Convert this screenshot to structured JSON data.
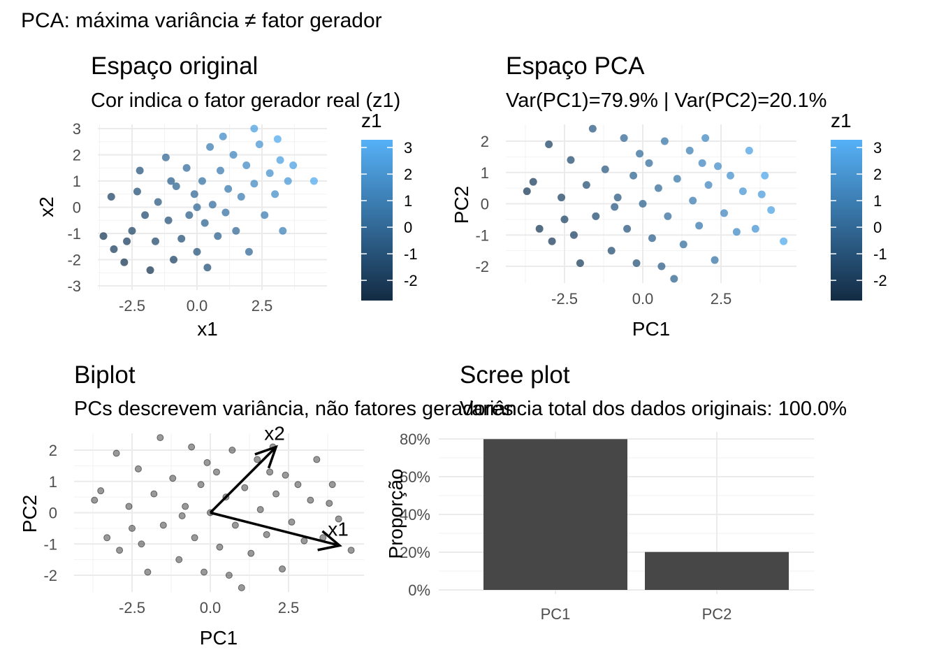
{
  "title": "PCA: máxima variância ≠ fator gerador",
  "chart_data": [
    {
      "type": "scatter",
      "title": "Espaço original",
      "subtitle": "Cor indica o fator gerador real (z1)",
      "xlabel": "x1",
      "ylabel": "x2",
      "xticks": [
        "-2.5",
        "0.0",
        "2.5"
      ],
      "yticks": [
        "-3",
        "-2",
        "-1",
        "0",
        "1",
        "2",
        "3"
      ],
      "legend": {
        "title": "z1",
        "ticks": [
          "3",
          "2",
          "1",
          "0",
          "-1",
          "-2"
        ],
        "low_color": "#132B43",
        "high_color": "#56B1F7",
        "placement": "right"
      },
      "grid": true,
      "points_fields": [
        "x1",
        "x2",
        "z1"
      ],
      "points": [
        [
          -3.6,
          -1.1,
          -2
        ],
        [
          -3.2,
          -1.6,
          -1.8
        ],
        [
          -3.3,
          0.4,
          -1.5
        ],
        [
          -2.8,
          -2.1,
          -2.1
        ],
        [
          -2.5,
          -0.9,
          -1.5
        ],
        [
          -2.3,
          0.6,
          -1
        ],
        [
          -2.2,
          1.4,
          -0.8
        ],
        [
          -1.8,
          -2.4,
          -2.2
        ],
        [
          -1.6,
          -1.3,
          -1.3
        ],
        [
          -1.5,
          0.2,
          -0.7
        ],
        [
          -1.2,
          1.9,
          0
        ],
        [
          -1.1,
          -0.5,
          -0.9
        ],
        [
          -0.9,
          -2.0,
          -1.6
        ],
        [
          -0.8,
          0.8,
          -0.2
        ],
        [
          -0.6,
          -1.2,
          -1
        ],
        [
          -0.4,
          1.5,
          0.3
        ],
        [
          -0.3,
          -0.3,
          -0.4
        ],
        [
          -0.1,
          0.5,
          0
        ],
        [
          0,
          -1.7,
          -0.9
        ],
        [
          0.2,
          1.0,
          0.5
        ],
        [
          0.3,
          -0.6,
          -0.2
        ],
        [
          0.5,
          2.3,
          1
        ],
        [
          0.6,
          0.1,
          0.3
        ],
        [
          0.8,
          -1.1,
          -0.3
        ],
        [
          0.9,
          1.4,
          0.9
        ],
        [
          1.1,
          -0.2,
          0.4
        ],
        [
          1.2,
          0.7,
          0.8
        ],
        [
          1.4,
          2.0,
          1.4
        ],
        [
          1.5,
          -0.9,
          0.1
        ],
        [
          1.7,
          0.4,
          1
        ],
        [
          1.9,
          1.6,
          1.6
        ],
        [
          2.0,
          -1.7,
          0
        ],
        [
          2.2,
          0.9,
          1.5
        ],
        [
          2.4,
          2.4,
          2.1
        ],
        [
          2.6,
          -0.3,
          1
        ],
        [
          2.8,
          1.3,
          1.9
        ],
        [
          3.0,
          0.5,
          1.7
        ],
        [
          3.2,
          1.8,
          2.5
        ],
        [
          3.3,
          -0.9,
          1.2
        ],
        [
          3.5,
          1.0,
          2.2
        ],
        [
          3.7,
          1.6,
          2.6
        ],
        [
          4.5,
          1.0,
          3
        ],
        [
          3.1,
          2.6,
          3
        ],
        [
          2.2,
          3.0,
          2.5
        ],
        [
          -2.0,
          -0.3,
          -1.2
        ],
        [
          -1.0,
          1.0,
          -0.3
        ],
        [
          0.4,
          -2.3,
          -1
        ],
        [
          1.0,
          2.7,
          1.6
        ],
        [
          -2.7,
          -1.3,
          -1.9
        ],
        [
          0.0,
          0.0,
          0
        ]
      ]
    },
    {
      "type": "scatter",
      "title": "Espaço PCA",
      "subtitle": "Var(PC1)=79.9% | Var(PC2)=20.1%",
      "xlabel": "PC1",
      "ylabel": "PC2",
      "xticks": [
        "-2.5",
        "0.0",
        "2.5"
      ],
      "yticks": [
        "-2",
        "-1",
        "0",
        "1",
        "2"
      ],
      "legend": {
        "title": "z1",
        "ticks": [
          "3",
          "2",
          "1",
          "0",
          "-1",
          "-2"
        ],
        "low_color": "#132B43",
        "high_color": "#56B1F7",
        "placement": "right"
      },
      "grid": true,
      "points_fields": [
        "PC1",
        "PC2",
        "z1"
      ],
      "points": [
        [
          -3.7,
          0.4,
          -2
        ],
        [
          -3.5,
          0.7,
          -1.8
        ],
        [
          -3.3,
          -0.8,
          -2
        ],
        [
          -3.0,
          1.9,
          -1.5
        ],
        [
          -2.9,
          -1.2,
          -1.9
        ],
        [
          -2.6,
          0.2,
          -1.6
        ],
        [
          -2.3,
          1.4,
          -1.2
        ],
        [
          -2.2,
          -1.0,
          -1.6
        ],
        [
          -2.0,
          -1.9,
          -1.8
        ],
        [
          -1.8,
          0.6,
          -1.1
        ],
        [
          -1.6,
          2.4,
          -0.6
        ],
        [
          -1.5,
          -0.4,
          -1.2
        ],
        [
          -1.2,
          1.1,
          -0.6
        ],
        [
          -1.0,
          -1.5,
          -1.2
        ],
        [
          -0.8,
          0.2,
          -0.7
        ],
        [
          -0.6,
          2.1,
          0
        ],
        [
          -0.5,
          -0.8,
          -0.8
        ],
        [
          -0.3,
          0.9,
          -0.2
        ],
        [
          -0.2,
          -1.9,
          -0.9
        ],
        [
          0.0,
          0.0,
          -0.2
        ],
        [
          0.2,
          1.3,
          0.3
        ],
        [
          0.3,
          -1.1,
          -0.3
        ],
        [
          0.5,
          0.5,
          0.2
        ],
        [
          0.7,
          2.0,
          0.7
        ],
        [
          0.8,
          -0.4,
          0.3
        ],
        [
          1.0,
          -2.4,
          -0.2
        ],
        [
          1.1,
          0.8,
          0.7
        ],
        [
          1.3,
          -1.3,
          0.3
        ],
        [
          1.5,
          1.7,
          1.1
        ],
        [
          1.6,
          0.1,
          0.9
        ],
        [
          1.8,
          -0.7,
          0.8
        ],
        [
          2.0,
          2.1,
          1.5
        ],
        [
          2.1,
          0.6,
          1.4
        ],
        [
          2.3,
          -1.8,
          0.6
        ],
        [
          2.4,
          1.2,
          1.7
        ],
        [
          2.6,
          -0.3,
          1.4
        ],
        [
          2.8,
          0.9,
          1.9
        ],
        [
          3.0,
          -0.9,
          1.6
        ],
        [
          3.2,
          0.4,
          2.1
        ],
        [
          3.4,
          1.7,
          2.6
        ],
        [
          3.6,
          -0.8,
          2
        ],
        [
          3.8,
          0.3,
          2.4
        ],
        [
          3.9,
          0.9,
          2.8
        ],
        [
          4.1,
          -0.2,
          2.7
        ],
        [
          4.5,
          -1.2,
          3
        ],
        [
          -0.9,
          -0.1,
          -0.7
        ],
        [
          0.6,
          -2.0,
          -0.4
        ],
        [
          -2.5,
          -0.5,
          -1.6
        ],
        [
          1.9,
          1.3,
          1.4
        ],
        [
          -0.1,
          1.6,
          0.2
        ]
      ]
    },
    {
      "type": "scatter",
      "title": "Biplot",
      "subtitle": "PCs descrevem variância, não fatores geradores",
      "xlabel": "PC1",
      "ylabel": "PC2",
      "xticks": [
        "-2.5",
        "0.0",
        "2.5"
      ],
      "yticks": [
        "-2",
        "-1",
        "0",
        "1",
        "2"
      ],
      "grid": true,
      "point_color": "#000000",
      "points_source": "Espaço PCA",
      "arrows": [
        {
          "label": "x1",
          "end": [
            4.13,
            -1.05
          ]
        },
        {
          "label": "x2",
          "end": [
            2.1,
            2.1
          ]
        }
      ]
    },
    {
      "type": "bar",
      "title": "Scree plot",
      "subtitle": "Variância total dos dados originais: 100.0%",
      "xlabel": "",
      "ylabel": "Proporção",
      "categories": [
        "PC1",
        "PC2"
      ],
      "values": [
        79.9,
        20.1
      ],
      "yticks": [
        "0%",
        "20%",
        "40%",
        "60%",
        "80%"
      ],
      "ylim": [
        0,
        80
      ],
      "bar_color": "#474747",
      "grid": true
    }
  ]
}
